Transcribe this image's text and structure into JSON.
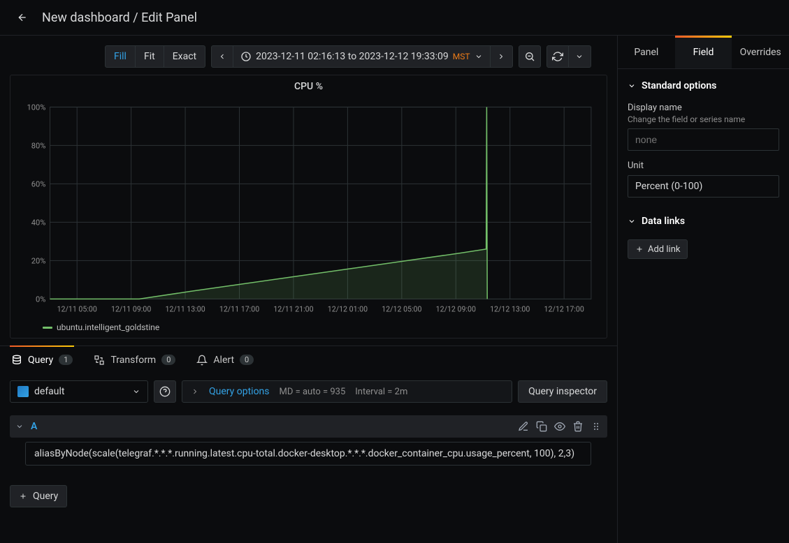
{
  "header": {
    "breadcrumb": "New dashboard / Edit Panel"
  },
  "toolbar": {
    "viewModes": {
      "fill": "Fill",
      "fit": "Fit",
      "exact": "Exact",
      "active": "fill"
    },
    "timeRange": "2023-12-11 02:16:13 to 2023-12-12 19:33:09",
    "timezone": "MST"
  },
  "chart": {
    "type": "line-area",
    "title": "CPU %",
    "background": "#0b0c0e",
    "grid_color": "#2c3235",
    "axis_text_color": "#8e8e8e",
    "series": [
      {
        "name": "ubuntu.intelligent_goldstine",
        "stroke": "#73bf69",
        "fill": "#73bf6926",
        "points_x": [
          0,
          0.165,
          0.26,
          0.36,
          0.46,
          0.56,
          0.66,
          0.76,
          0.806,
          0.807,
          0.808
        ],
        "points_y": [
          0,
          0,
          4,
          8,
          12,
          16,
          20,
          24,
          26,
          100,
          0
        ]
      }
    ],
    "y": {
      "min": 0,
      "max": 100,
      "ticks": [
        0,
        20,
        40,
        60,
        80,
        100
      ],
      "tick_labels": [
        "0%",
        "20%",
        "40%",
        "60%",
        "80%",
        "100%"
      ]
    },
    "x_tick_labels": [
      "12/11 05:00",
      "12/11 09:00",
      "12/11 13:00",
      "12/11 17:00",
      "12/11 21:00",
      "12/12 01:00",
      "12/12 05:00",
      "12/12 09:00",
      "12/12 13:00",
      "12/12 17:00"
    ]
  },
  "bottomTabs": {
    "query": {
      "label": "Query",
      "count": "1"
    },
    "transform": {
      "label": "Transform",
      "count": "0"
    },
    "alert": {
      "label": "Alert",
      "count": "0"
    },
    "active": "query"
  },
  "queryEditor": {
    "datasource": "default",
    "queryOptionsLabel": "Query options",
    "md": "MD = auto = 935",
    "interval": "Interval = 2m",
    "inspectorLabel": "Query inspector",
    "queries": [
      {
        "id": "A",
        "text": "aliasByNode(scale(telegraf.*.*.*.running.latest.cpu-total.docker-desktop.*.*.*.docker_container_cpu.usage_percent, 100), 2,3)"
      }
    ],
    "addQueryLabel": "Query"
  },
  "rightPanel": {
    "tabs": {
      "panel": "Panel",
      "field": "Field",
      "overrides": "Overrides",
      "active": "field"
    },
    "standardOptions": {
      "title": "Standard options",
      "displayName": {
        "label": "Display name",
        "help": "Change the field or series name",
        "placeholder": "none",
        "value": ""
      },
      "unit": {
        "label": "Unit",
        "value": "Percent (0-100)"
      }
    },
    "dataLinks": {
      "title": "Data links",
      "addLabel": "Add link"
    }
  }
}
